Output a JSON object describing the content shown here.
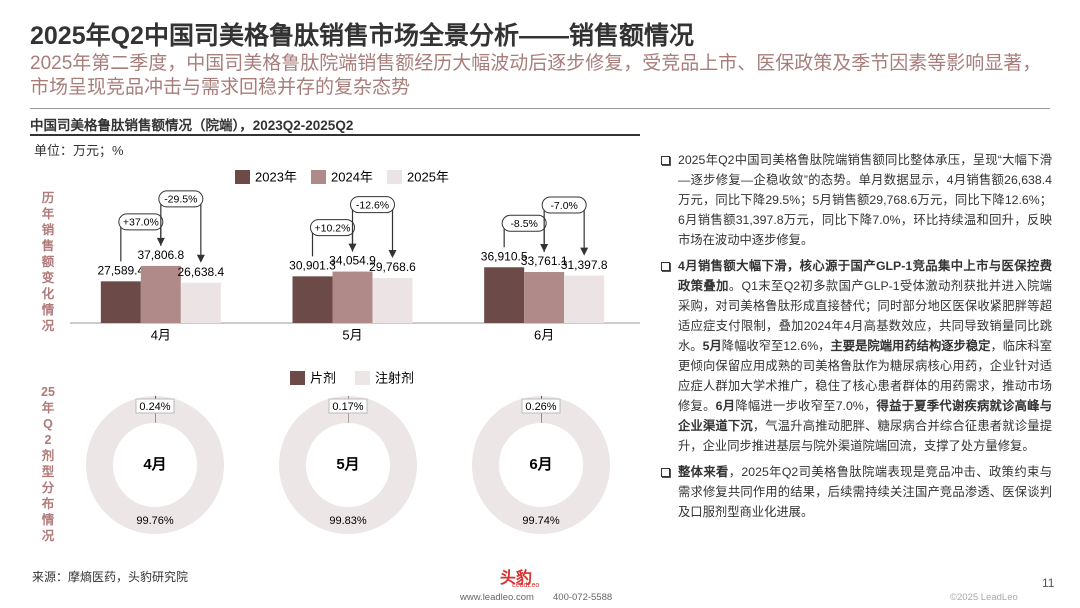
{
  "header": {
    "title": "2025年Q2中国司美格鲁肽销售市场全景分析——销售额情况",
    "subtitle": "2025年第二季度，中国司美格鲁肽院端销售额经历大幅波动后逐步修复，受竞品上市、医保政策及季节因素等影响显著，市场呈现竞品冲击与需求回稳并存的复杂态势"
  },
  "section_title": "中国司美格鲁肽销售额情况（院端），2023Q2-2025Q2",
  "unit": "单位：万元；%",
  "chart_data": [
    {
      "type": "bar",
      "y_label": "历年销售额变化情况",
      "categories": [
        "4月",
        "5月",
        "6月"
      ],
      "ylim": [
        0,
        100000
      ],
      "series": [
        {
          "name": "2023年",
          "color": "#6b4a48",
          "values": [
            27589.4,
            30901.3,
            36910.5
          ],
          "value_labels": [
            "27,589.4",
            "30,901.3",
            "36,910.5"
          ]
        },
        {
          "name": "2024年",
          "color": "#b08a88",
          "values": [
            37806.8,
            34054.9,
            33761.1
          ],
          "value_labels": [
            "37,806.8",
            "34,054.9",
            "33,761.1"
          ]
        },
        {
          "name": "2025年",
          "color": "#ece4e4",
          "values": [
            26638.4,
            29768.6,
            31397.8
          ],
          "value_labels": [
            "26,638.4",
            "29,768.6",
            "31,397.8"
          ]
        }
      ],
      "annotations": [
        [
          "+37.0%",
          "-29.5%"
        ],
        [
          "+10.2%",
          "-12.6%"
        ],
        [
          "-8.5%",
          "-7.0%"
        ]
      ]
    },
    {
      "type": "pie",
      "donut": true,
      "y_label": "25年Q2剂型分布情况",
      "categories": [
        "4月",
        "5月",
        "6月"
      ],
      "series": [
        {
          "name": "片剂",
          "color": "#6b4a48",
          "values": [
            0.24,
            0.17,
            0.26
          ],
          "value_labels": [
            "0.24%",
            "0.17%",
            "0.26%"
          ]
        },
        {
          "name": "注射剂",
          "color": "#ece6e6",
          "values": [
            99.76,
            99.83,
            99.74
          ],
          "value_labels": [
            "99.76%",
            "99.83%",
            "99.74%"
          ]
        }
      ]
    }
  ],
  "bullets": [
    [
      {
        "t": "2025年Q2中国司美格鲁肽院端销售额同比整体承压，呈现“大幅下滑—逐步修复—企稳收敛”的态势。单月数据显示，4月销售额26,638.4万元，同比下降29.5%；5月销售额29,768.6万元，同比下降12.6%；6月销售额31,397.8万元，同比下降7.0%，环比持续温和回升，反映市场在波动中逐步修复。"
      }
    ],
    [
      {
        "t": "4月销售额大幅下滑，核心源于国产GLP-1竞品集中上市与医保控费政策叠加",
        "b": true
      },
      {
        "t": "。Q1末至Q2初多款国产GLP-1受体激动剂获批并进入院端采购，对司美格鲁肽形成直接替代；同时部分地区医保收紧肥胖等超适应症支付限制，叠加2024年4月高基数效应，共同导致销量同比跳水。"
      },
      {
        "t": "5月",
        "b": true
      },
      {
        "t": "降幅收窄至12.6%，"
      },
      {
        "t": "主要是院端用药结构逐步稳定",
        "b": true
      },
      {
        "t": "，临床科室更倾向保留应用成熟的司美格鲁肽作为糖尿病核心用药，企业针对适应症人群加大学术推广，稳住了核心患者群体的用药需求，推动市场修复。"
      },
      {
        "t": "6月",
        "b": true
      },
      {
        "t": "降幅进一步收窄至7.0%，"
      },
      {
        "t": "得益于夏季代谢疾病就诊高峰与企业渠道下沉",
        "b": true
      },
      {
        "t": "，气温升高推动肥胖、糖尿病合并综合征患者就诊量提升，企业同步推进基层与院外渠道院端回流，支撑了处方量修复。"
      }
    ],
    [
      {
        "t": "整体来看",
        "b": true
      },
      {
        "t": "，2025年Q2司美格鲁肽院端表现是竞品冲击、政策约束与需求修复共同作用的结果，后续需持续关注国产竞品渗透、医保谈判及口服剂型商业化进展。"
      }
    ]
  ],
  "source": "来源：摩熵医药，头豹研究院",
  "footer": {
    "logo": "头豹",
    "brand": "LeadLeo",
    "website": "www.leadleo.com",
    "phone": "400-072-5588",
    "copyright": "©2025 LeadLeo"
  },
  "page_number": "11"
}
